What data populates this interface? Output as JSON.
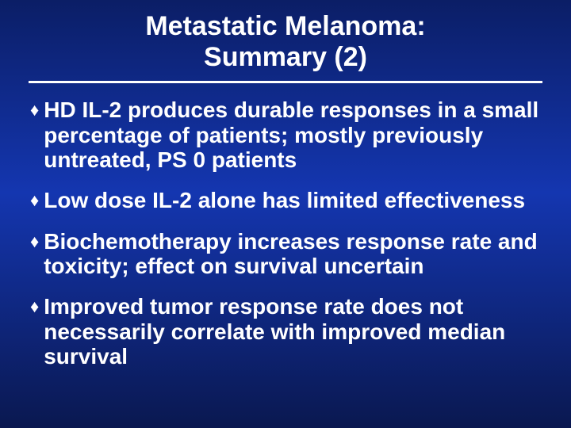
{
  "slide": {
    "background_gradient": [
      "#0b1e66",
      "#1436b0",
      "#0a1850"
    ],
    "text_color": "#ffffff",
    "title_line1": "Metastatic Melanoma:",
    "title_line2": "Summary (2)",
    "title_fontsize": 34,
    "title_fontweight": "bold",
    "title_underline_color": "#ffffff",
    "title_underline_thickness": 3,
    "bullet_marker": "♦",
    "bullet_fontsize": 28,
    "bullet_fontweight": "bold",
    "bullets": [
      "HD IL-2 produces durable responses in a small percentage of patients; mostly previously untreated, PS 0 patients",
      "Low dose IL-2 alone has limited effectiveness",
      "Biochemotherapy increases response rate and toxicity; effect on survival uncertain",
      "Improved tumor response rate does not necessarily correlate with improved median survival"
    ]
  }
}
